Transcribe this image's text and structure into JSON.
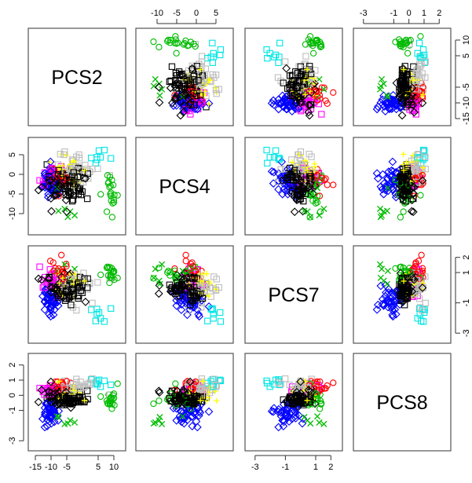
{
  "chart_data": {
    "type": "scatter",
    "variables": [
      "PCS2",
      "PCS4",
      "PCS7",
      "PCS8"
    ],
    "ranges": {
      "PCS2": [
        -15.5,
        12
      ],
      "PCS4": [
        -14,
        8
      ],
      "PCS7": [
        -3.3,
        2.4
      ],
      "PCS8": [
        -3.3,
        2.4
      ]
    },
    "ticks": {
      "PCS2": {
        "values": [
          -15,
          -10,
          -5,
          5,
          10
        ],
        "labels": [
          "-15",
          "-10",
          "-5",
          "5",
          "10"
        ]
      },
      "PCS4": {
        "values": [
          -10,
          -5,
          0,
          5
        ],
        "labels": [
          "-10",
          "-5",
          "0",
          "5"
        ]
      },
      "PCS7": {
        "values": [
          -3,
          -1,
          1,
          2
        ],
        "labels": [
          "-3",
          "-1",
          "1",
          "2"
        ]
      },
      "PCS8": {
        "values": [
          -3,
          -1,
          0,
          1,
          2
        ],
        "labels": [
          "-3",
          "-1",
          "0",
          "1",
          "2"
        ]
      }
    },
    "tick_layout": {
      "top": [
        "PCS4",
        "PCS8"
      ],
      "right": [
        "PCS2",
        "PCS7"
      ],
      "bottom": [
        "PCS2",
        "PCS7"
      ],
      "left": [
        "PCS4",
        "PCS8"
      ]
    },
    "groups": [
      {
        "color": "#000000",
        "marker": "square",
        "center": {
          "PCS2": -4,
          "PCS4": -2,
          "PCS7": -0.2,
          "PCS8": -0.2
        },
        "spread": {
          "PCS2": 5.5,
          "PCS4": 4.2,
          "PCS7": 0.8,
          "PCS8": 0.45
        },
        "n": 60
      },
      {
        "color": "#000000",
        "marker": "diamond",
        "center": {
          "PCS2": -7,
          "PCS4": -3,
          "PCS7": 0,
          "PCS8": -0.1
        },
        "spread": {
          "PCS2": 4.5,
          "PCS4": 4.5,
          "PCS7": 1.0,
          "PCS8": 0.7
        },
        "n": 35
      },
      {
        "color": "#0000ff",
        "marker": "diamond",
        "center": {
          "PCS2": -10,
          "PCS4": -2,
          "PCS7": -0.8,
          "PCS8": -1.1
        },
        "spread": {
          "PCS2": 2.5,
          "PCS4": 3.5,
          "PCS7": 0.8,
          "PCS8": 0.8
        },
        "n": 45
      },
      {
        "color": "#ff00ff",
        "marker": "square",
        "center": {
          "PCS2": -9,
          "PCS4": -1,
          "PCS7": 0.4,
          "PCS8": 0.4
        },
        "spread": {
          "PCS2": 3.5,
          "PCS4": 2.8,
          "PCS7": 0.7,
          "PCS8": 0.4
        },
        "n": 35
      },
      {
        "color": "#ffff00",
        "marker": "plus",
        "center": {
          "PCS2": -4,
          "PCS4": 0.5,
          "PCS7": 0.3,
          "PCS8": 0.2
        },
        "spread": {
          "PCS2": 4.5,
          "PCS4": 3.0,
          "PCS7": 0.9,
          "PCS8": 0.6
        },
        "n": 40
      },
      {
        "color": "#bebebe",
        "marker": "square",
        "center": {
          "PCS2": -1,
          "PCS4": 1.5,
          "PCS7": 0,
          "PCS8": 0.5
        },
        "spread": {
          "PCS2": 6.0,
          "PCS4": 3.5,
          "PCS7": 1.0,
          "PCS8": 0.6
        },
        "n": 40
      },
      {
        "color": "#00bb00",
        "marker": "circle",
        "center": {
          "PCS2": 9,
          "PCS4": -5,
          "PCS7": 0.9,
          "PCS8": -0.4
        },
        "spread": {
          "PCS2": 2.0,
          "PCS4": 5.0,
          "PCS7": 0.7,
          "PCS8": 0.7
        },
        "n": 20
      },
      {
        "color": "#ff0000",
        "marker": "circle",
        "center": {
          "PCS2": -7,
          "PCS4": -1,
          "PCS7": 1.2,
          "PCS8": 0.6
        },
        "spread": {
          "PCS2": 5.0,
          "PCS4": 2.5,
          "PCS7": 0.6,
          "PCS8": 0.4
        },
        "n": 20
      },
      {
        "color": "#00e5e5",
        "marker": "square",
        "center": {
          "PCS2": 5,
          "PCS4": 4.5,
          "PCS7": -1.6,
          "PCS8": 0.9
        },
        "spread": {
          "PCS2": 4.0,
          "PCS4": 1.6,
          "PCS7": 1.0,
          "PCS8": 0.3
        },
        "n": 8
      },
      {
        "color": "#00bb00",
        "marker": "cross",
        "center": {
          "PCS2": -6,
          "PCS4": -7,
          "PCS7": 0.8,
          "PCS8": -1.8
        },
        "spread": {
          "PCS2": 3.0,
          "PCS4": 4.0,
          "PCS7": 0.8,
          "PCS8": 0.5
        },
        "n": 6
      }
    ]
  }
}
